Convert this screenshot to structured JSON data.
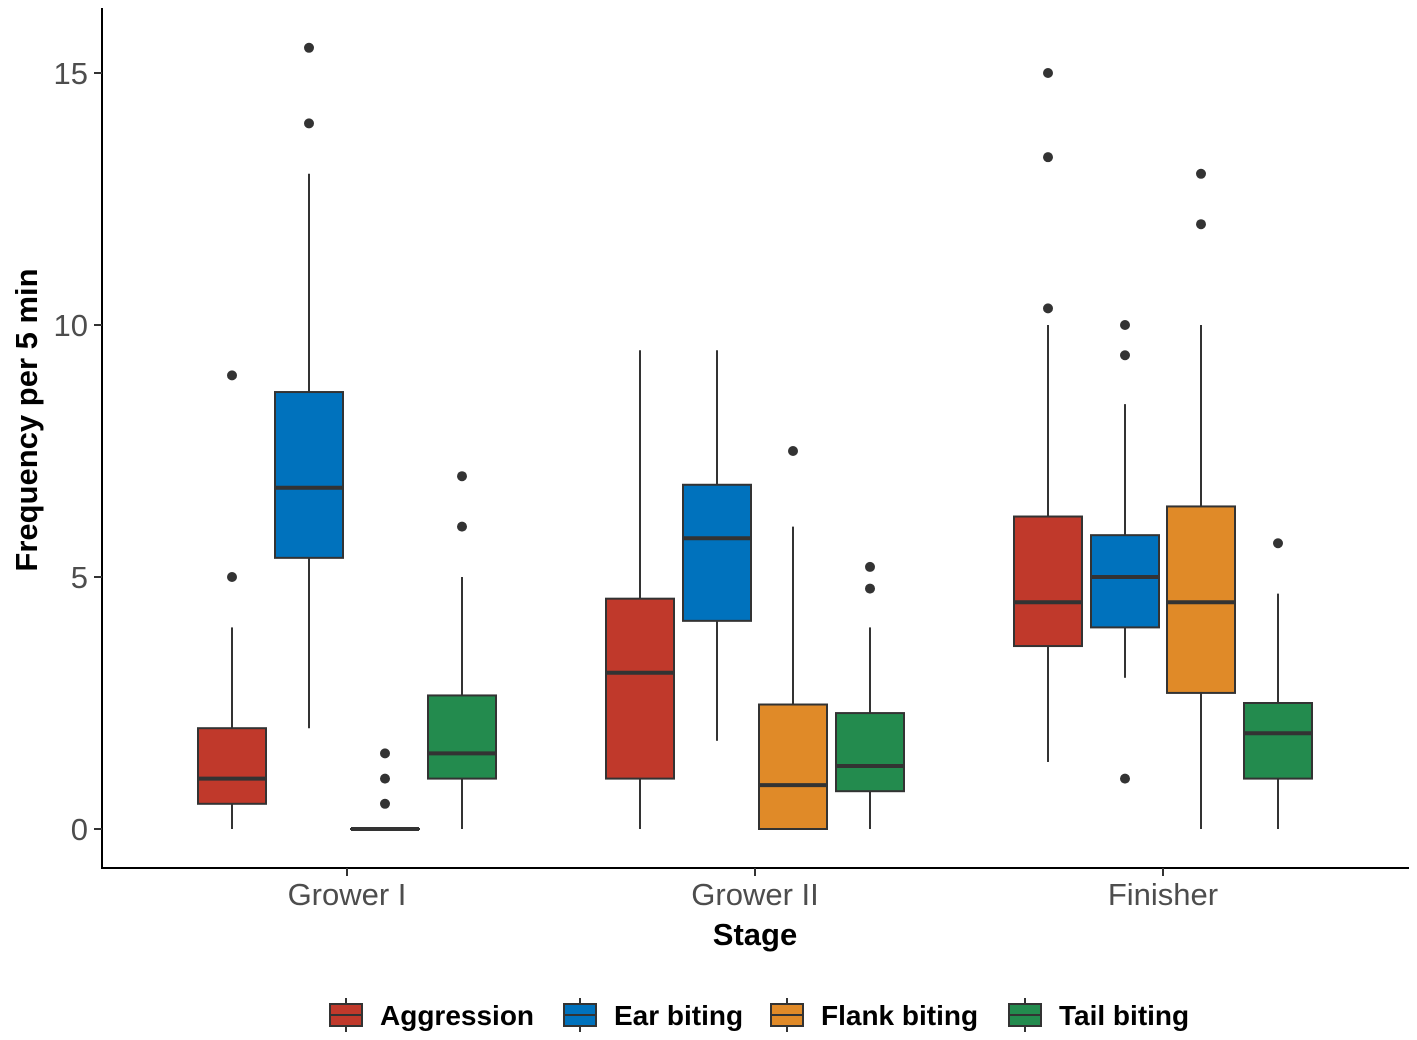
{
  "chart_data": {
    "type": "boxplot",
    "title": "",
    "xlabel": "Stage",
    "ylabel": "Frequency  per 5 min",
    "ylim": [
      -1.3,
      16.3
    ],
    "yticks": [
      0,
      5,
      10,
      15
    ],
    "ytick_labels": [
      "0",
      "5",
      "10",
      "15"
    ],
    "categories": [
      "Grower I",
      "Grower II",
      "Finisher"
    ],
    "legend_position": "bottom",
    "series": [
      {
        "name": "Aggression",
        "color": "#c0392b",
        "boxes": [
          {
            "min": 0,
            "q1": 0.5,
            "median": 1.0,
            "q3": 2.0,
            "max": 4.0,
            "outliers": [
              5.0,
              9.0
            ]
          },
          {
            "min": 0,
            "q1": 1.0,
            "median": 3.1,
            "q3": 4.57,
            "max": 9.5,
            "outliers": []
          },
          {
            "min": 1.33,
            "q1": 3.63,
            "median": 4.5,
            "q3": 6.2,
            "max": 10.0,
            "outliers": [
              10.33,
              13.33,
              15.0
            ]
          }
        ]
      },
      {
        "name": "Ear biting",
        "color": "#0072bd",
        "boxes": [
          {
            "min": 2.0,
            "q1": 5.38,
            "median": 6.77,
            "q3": 8.67,
            "max": 13.0,
            "outliers": [
              14.0,
              15.5
            ]
          },
          {
            "min": 1.75,
            "q1": 4.13,
            "median": 5.77,
            "q3": 6.83,
            "max": 9.5,
            "outliers": []
          },
          {
            "min": 3.0,
            "q1": 4.0,
            "median": 5.0,
            "q3": 5.83,
            "max": 8.43,
            "outliers": [
              1.0,
              9.4,
              10.0
            ]
          }
        ]
      },
      {
        "name": "Flank biting",
        "color": "#e08a28",
        "boxes": [
          {
            "min": 0,
            "q1": 0,
            "median": 0,
            "q3": 0,
            "max": 0,
            "outliers": [
              0.5,
              1.0,
              1.5
            ]
          },
          {
            "min": 0,
            "q1": 0,
            "median": 0.87,
            "q3": 2.47,
            "max": 6.0,
            "outliers": [
              7.5
            ]
          },
          {
            "min": 0,
            "q1": 2.7,
            "median": 4.5,
            "q3": 6.4,
            "max": 10.0,
            "outliers": [
              12.0,
              13.0
            ]
          }
        ]
      },
      {
        "name": "Tail biting",
        "color": "#238b4e",
        "boxes": [
          {
            "min": 0,
            "q1": 1.0,
            "median": 1.5,
            "q3": 2.65,
            "max": 5.0,
            "outliers": [
              6.0,
              7.0
            ]
          },
          {
            "min": 0,
            "q1": 0.75,
            "median": 1.25,
            "q3": 2.3,
            "max": 4.0,
            "outliers": [
              4.77,
              5.2
            ]
          },
          {
            "min": 0,
            "q1": 1.0,
            "median": 1.9,
            "q3": 2.5,
            "max": 4.67,
            "outliers": [
              5.67
            ]
          }
        ]
      }
    ]
  }
}
